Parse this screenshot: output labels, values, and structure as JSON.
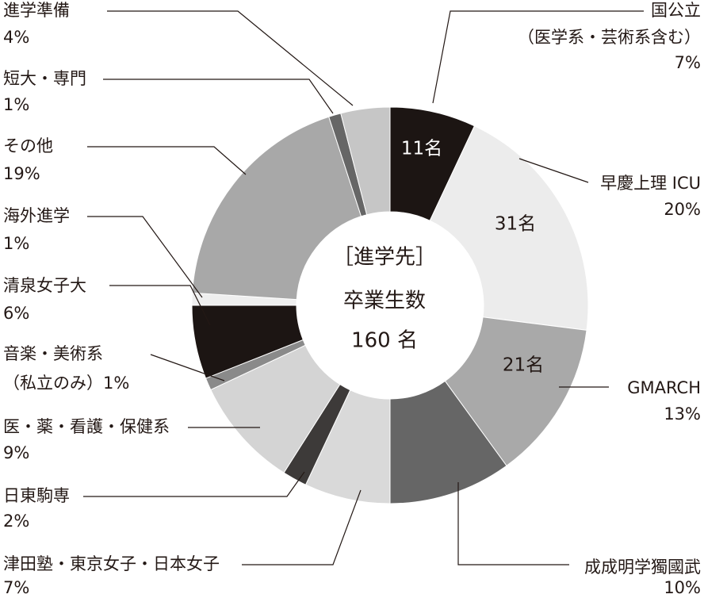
{
  "chart_data": {
    "type": "donut",
    "center_lines": [
      "［進学先］",
      "卒業生数",
      "160 名"
    ],
    "categories": [
      "国公立",
      "早慶上理 ICU",
      "GMARCH",
      "成成明学獨國武",
      "津田塾・東京女子・日本女子",
      "日東駒専",
      "医・薬・看護・保健系",
      "音楽・美術系",
      "清泉女子大",
      "海外進学",
      "その他",
      "短大・専門",
      "進学準備"
    ],
    "notes": [
      "（医学系・芸術系含む）",
      null,
      null,
      null,
      null,
      null,
      null,
      "（私立のみ）",
      null,
      null,
      null,
      null,
      null
    ],
    "values": [
      7,
      20,
      13,
      10,
      7,
      2,
      9,
      1,
      6,
      1,
      19,
      1,
      4
    ],
    "value_labels": [
      "7%",
      "20%",
      "13%",
      "10%",
      "7%",
      "2%",
      "9%",
      "1%",
      "6%",
      "1%",
      "19%",
      "1%",
      "4%"
    ],
    "inner_labels": [
      "11名",
      "31名",
      "21名",
      null,
      null,
      null,
      null,
      null,
      null,
      null,
      null,
      null,
      null
    ],
    "colors": [
      "#1c1513",
      "#ececec",
      "#a9a9a9",
      "#666666",
      "#d9d9d9",
      "#3d3a39",
      "#d4d4d4",
      "#8a8a8a",
      "#1c1513",
      "#efefef",
      "#a8a8a8",
      "#666666",
      "#c6c6c6"
    ]
  }
}
